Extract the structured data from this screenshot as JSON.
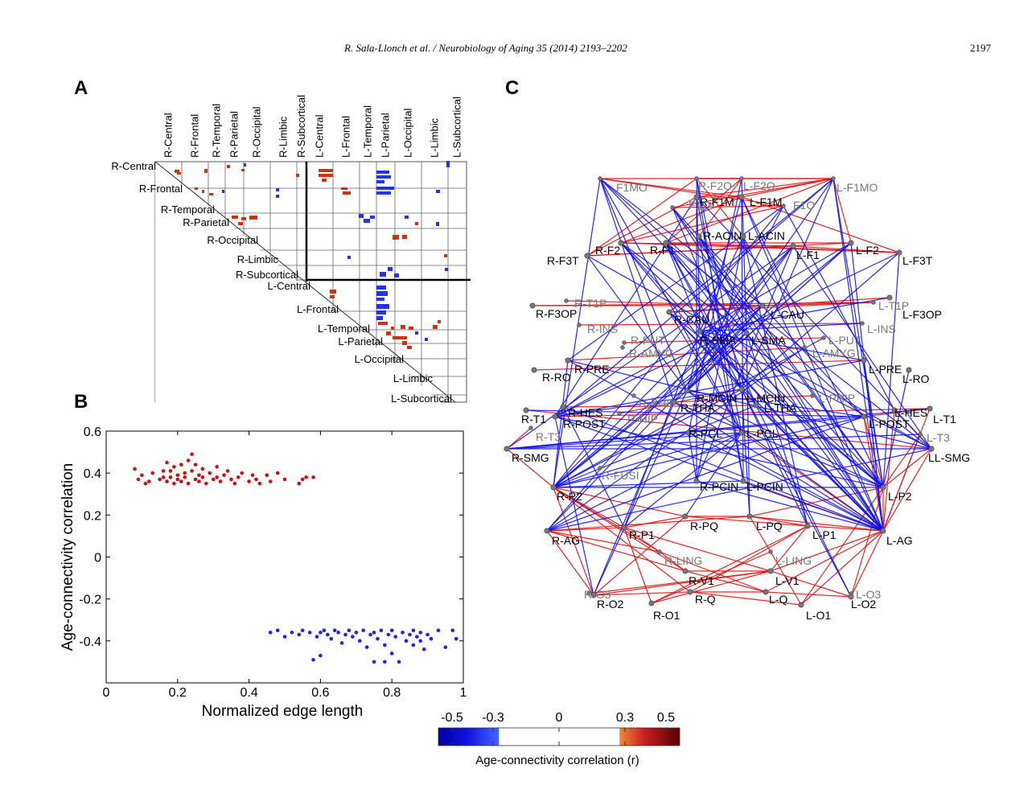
{
  "header": {
    "running_title": "R. Sala-Llonch et al. / Neurobiology of Aging 35 (2014) 2193–2202",
    "page_number": "2197"
  },
  "panels": {
    "a": "A",
    "b": "B",
    "c": "C"
  },
  "panel_a": {
    "column_labels": [
      "R-Central",
      "R-Frontal",
      "R-Temporal",
      "R-Parietal",
      "R-Occipital",
      "R-Limbic",
      "R-Subcortical",
      "L-Central",
      "L-Frontal",
      "L-Temporal",
      "L-Parietal",
      "L-Occipital",
      "L-Limbic",
      "L-Subcortical"
    ],
    "row_labels": [
      "R-Central",
      "R-Frontal",
      "R-Temporal",
      "R-Parietal",
      "R-Occipital",
      "R-Limbic",
      "R-Subcortical",
      "L-Central",
      "L-Frontal",
      "L-Temporal",
      "L-Parietal",
      "L-Occipital",
      "L-Limbic",
      "L-Subcortical"
    ],
    "colors": {
      "positive": "#cc3311",
      "negative": "#2233ee"
    }
  },
  "chart_data": {
    "type": "scatter",
    "xlabel": "Normalized edge length",
    "ylabel": "Age-connectivity correlation",
    "xlim": [
      0,
      1
    ],
    "ylim": [
      -0.6,
      0.6
    ],
    "xticks": [
      "0",
      "0.2",
      "0.4",
      "0.6",
      "0.8",
      "1"
    ],
    "yticks": [
      "0.6",
      "0.4",
      "0.2",
      "0",
      "-0.2",
      "-0.4"
    ],
    "grid": false,
    "series": [
      {
        "color": "#cc1111",
        "x": [
          0.08,
          0.09,
          0.1,
          0.11,
          0.12,
          0.13,
          0.15,
          0.16,
          0.16,
          0.17,
          0.17,
          0.18,
          0.18,
          0.19,
          0.19,
          0.2,
          0.2,
          0.21,
          0.21,
          0.22,
          0.22,
          0.23,
          0.23,
          0.24,
          0.24,
          0.25,
          0.25,
          0.26,
          0.26,
          0.27,
          0.27,
          0.28,
          0.29,
          0.3,
          0.31,
          0.31,
          0.32,
          0.33,
          0.34,
          0.35,
          0.36,
          0.37,
          0.38,
          0.4,
          0.41,
          0.42,
          0.43,
          0.45,
          0.46,
          0.48,
          0.5,
          0.54,
          0.55,
          0.56,
          0.58
        ],
        "y": [
          0.42,
          0.37,
          0.39,
          0.35,
          0.36,
          0.4,
          0.37,
          0.41,
          0.38,
          0.45,
          0.36,
          0.38,
          0.41,
          0.35,
          0.43,
          0.39,
          0.37,
          0.36,
          0.44,
          0.38,
          0.4,
          0.46,
          0.35,
          0.49,
          0.41,
          0.37,
          0.44,
          0.39,
          0.36,
          0.42,
          0.38,
          0.35,
          0.4,
          0.37,
          0.43,
          0.38,
          0.36,
          0.39,
          0.41,
          0.37,
          0.35,
          0.38,
          0.4,
          0.36,
          0.39,
          0.37,
          0.35,
          0.39,
          0.36,
          0.4,
          0.37,
          0.35,
          0.37,
          0.38,
          0.38
        ]
      },
      {
        "color": "#2222ee",
        "x": [
          0.46,
          0.48,
          0.5,
          0.52,
          0.54,
          0.55,
          0.57,
          0.58,
          0.59,
          0.6,
          0.6,
          0.61,
          0.62,
          0.63,
          0.64,
          0.65,
          0.66,
          0.67,
          0.68,
          0.69,
          0.7,
          0.71,
          0.72,
          0.73,
          0.74,
          0.75,
          0.75,
          0.76,
          0.77,
          0.78,
          0.78,
          0.79,
          0.8,
          0.8,
          0.81,
          0.82,
          0.83,
          0.84,
          0.85,
          0.86,
          0.86,
          0.87,
          0.88,
          0.88,
          0.89,
          0.9,
          0.91,
          0.93,
          0.95,
          0.97,
          0.98
        ],
        "y": [
          -0.36,
          -0.35,
          -0.38,
          -0.36,
          -0.37,
          -0.35,
          -0.36,
          -0.49,
          -0.38,
          -0.36,
          -0.47,
          -0.35,
          -0.37,
          -0.39,
          -0.35,
          -0.36,
          -0.41,
          -0.37,
          -0.35,
          -0.38,
          -0.36,
          -0.4,
          -0.35,
          -0.43,
          -0.37,
          -0.5,
          -0.36,
          -0.39,
          -0.35,
          -0.5,
          -0.42,
          -0.37,
          -0.46,
          -0.35,
          -0.38,
          -0.5,
          -0.36,
          -0.4,
          -0.37,
          -0.35,
          -0.42,
          -0.38,
          -0.36,
          -0.4,
          -0.44,
          -0.37,
          -0.39,
          -0.35,
          -0.43,
          -0.35,
          -0.39
        ]
      }
    ]
  },
  "panel_c": {
    "colors": {
      "positive_edge": "#dd1111",
      "negative_edge": "#1111ee",
      "node": "#777777"
    },
    "nodes": [
      {
        "id": "F1MO_R",
        "label": "F1MO",
        "dim": true
      },
      {
        "id": "F2O_R",
        "label": "R-F2O",
        "dim": true
      },
      {
        "id": "F2O_L",
        "label": "L-F2O",
        "dim": true
      },
      {
        "id": "F1MO_L",
        "label": "L-F1MO",
        "dim": true
      },
      {
        "id": "F1M_R",
        "label": "R-F1M",
        "dim": false
      },
      {
        "id": "F1M_L",
        "label": "L-F1M",
        "dim": false
      },
      {
        "id": "F1O_R",
        "label": "F1O",
        "dim": true
      },
      {
        "id": "F1O_L",
        "label": "F1O",
        "dim": true
      },
      {
        "id": "ACIN_R",
        "label": "R-ACIN",
        "dim": false
      },
      {
        "id": "ACIN_L",
        "label": "L-ACIN",
        "dim": false
      },
      {
        "id": "F3T_R",
        "label": "R-F3T",
        "dim": false
      },
      {
        "id": "F2_R",
        "label": "R-F2",
        "dim": false
      },
      {
        "id": "F1_R",
        "label": "R-F1",
        "dim": false
      },
      {
        "id": "F1_L",
        "label": "L-F1",
        "dim": false
      },
      {
        "id": "F2_L",
        "label": "L-F2",
        "dim": false
      },
      {
        "id": "F3T_L",
        "label": "L-F3T",
        "dim": false
      },
      {
        "id": "F3OP_R",
        "label": "R-F3OP",
        "dim": false
      },
      {
        "id": "T1P_R",
        "label": "R-T1P",
        "dim": true
      },
      {
        "id": "CAU_R",
        "label": "R-CAU",
        "dim": false
      },
      {
        "id": "CAU_L",
        "label": "L-CAU",
        "dim": false
      },
      {
        "id": "T1P_L",
        "label": "L-T1P",
        "dim": true
      },
      {
        "id": "F3OP_L",
        "label": "L-F3OP",
        "dim": false
      },
      {
        "id": "INS_R",
        "label": "R-INS",
        "dim": true
      },
      {
        "id": "INS_L",
        "label": "L-INS",
        "dim": true
      },
      {
        "id": "PUT_R",
        "label": "R-PUT",
        "dim": true
      },
      {
        "id": "PUT_L",
        "label": "L-PUT",
        "dim": true
      },
      {
        "id": "SMA_R",
        "label": "R-SMA",
        "dim": false
      },
      {
        "id": "SMA_L",
        "label": "L-SMA",
        "dim": false
      },
      {
        "id": "AMYG_R",
        "label": "R-AMYG",
        "dim": true
      },
      {
        "id": "AMYG_L",
        "label": "L-AMYG",
        "dim": true
      },
      {
        "id": "RO_R",
        "label": "R-RO",
        "dim": false
      },
      {
        "id": "PRE_R",
        "label": "R-PRE",
        "dim": false
      },
      {
        "id": "PRE_L",
        "label": "L-PRE",
        "dim": false
      },
      {
        "id": "RO_L",
        "label": "L-RO",
        "dim": false
      },
      {
        "id": "PHIP_R",
        "label": "R-PHIP",
        "dim": true
      },
      {
        "id": "MCIN_R",
        "label": "R-MCIN",
        "dim": false
      },
      {
        "id": "MCIN_L",
        "label": "L-MCIN",
        "dim": false
      },
      {
        "id": "PHIP_L",
        "label": "L-PHIP",
        "dim": true
      },
      {
        "id": "HES_R",
        "label": "R-HES",
        "dim": false
      },
      {
        "id": "THA_R",
        "label": "R-THA",
        "dim": false
      },
      {
        "id": "THA_L",
        "label": "L-THA",
        "dim": false
      },
      {
        "id": "HES_L",
        "label": "L-HES",
        "dim": false
      },
      {
        "id": "T1_R",
        "label": "R-T1",
        "dim": false
      },
      {
        "id": "POST_R",
        "label": "R-POST",
        "dim": false
      },
      {
        "id": "HIP_R",
        "label": "R-HIP",
        "dim": true
      },
      {
        "id": "POST_L",
        "label": "L-POST",
        "dim": false
      },
      {
        "id": "T1_L",
        "label": "L-T1",
        "dim": false
      },
      {
        "id": "T3_R",
        "label": "R-T3",
        "dim": true
      },
      {
        "id": "PCL_R",
        "label": "R-PCL",
        "dim": false
      },
      {
        "id": "PCL_L",
        "label": "L-PCL",
        "dim": false
      },
      {
        "id": "T3_L",
        "label": "L-T3",
        "dim": true
      },
      {
        "id": "SMG_R",
        "label": "R-SMG",
        "dim": false
      },
      {
        "id": "SMG_L",
        "label": "LL-SMG",
        "dim": false
      },
      {
        "id": "FUSI_R",
        "label": "R-FUSI",
        "dim": true
      },
      {
        "id": "PCIN_R",
        "label": "R-PCIN",
        "dim": false
      },
      {
        "id": "PCIN_L",
        "label": "L-PCIN",
        "dim": false
      },
      {
        "id": "P2_R",
        "label": "R-P2",
        "dim": false
      },
      {
        "id": "P2_L",
        "label": "L-P2",
        "dim": false
      },
      {
        "id": "P1_R",
        "label": "R-P1",
        "dim": false
      },
      {
        "id": "PQ_R",
        "label": "R-PQ",
        "dim": false
      },
      {
        "id": "PQ_L",
        "label": "L-PQ",
        "dim": false
      },
      {
        "id": "P1_L",
        "label": "L-P1",
        "dim": false
      },
      {
        "id": "AG_R",
        "label": "R-AG",
        "dim": false
      },
      {
        "id": "AG_L",
        "label": "L-AG",
        "dim": false
      },
      {
        "id": "LING_R",
        "label": "R-LING",
        "dim": true
      },
      {
        "id": "LING_L",
        "label": "L-LING",
        "dim": true
      },
      {
        "id": "V1_R",
        "label": "R-V1",
        "dim": false
      },
      {
        "id": "V1_L",
        "label": "L-V1",
        "dim": false
      },
      {
        "id": "O3_R",
        "label": "R-O3",
        "dim": true
      },
      {
        "id": "O3_L",
        "label": "L-O3",
        "dim": true
      },
      {
        "id": "O2_R",
        "label": "R-O2",
        "dim": false
      },
      {
        "id": "Q_R",
        "label": "R-Q",
        "dim": false
      },
      {
        "id": "Q_L",
        "label": "L-Q",
        "dim": false
      },
      {
        "id": "O2_L",
        "label": "L-O2",
        "dim": false
      },
      {
        "id": "O1_R",
        "label": "R-O1",
        "dim": false
      },
      {
        "id": "O1_L",
        "label": "L-O1",
        "dim": false
      }
    ]
  },
  "colorbar": {
    "ticks": [
      "-0.5",
      "-0.3",
      "0",
      "0.3",
      "0.5"
    ],
    "label": "Age-connectivity correlation (r)"
  }
}
